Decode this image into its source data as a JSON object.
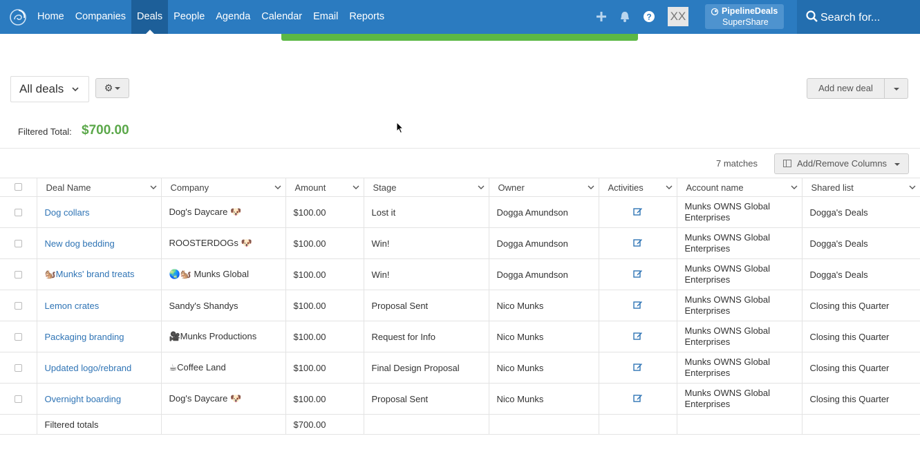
{
  "nav": {
    "items": [
      "Home",
      "Companies",
      "Deals",
      "People",
      "Agenda",
      "Calendar",
      "Email",
      "Reports"
    ],
    "active": "Deals",
    "avatar": "XX",
    "superbtn_line1": "PipelineDeals",
    "superbtn_line2": "SuperShare",
    "search_placeholder": "Search for..."
  },
  "toolbar": {
    "view_label": "All deals",
    "add_new_label": "Add new deal"
  },
  "summary": {
    "filtered_total_label": "Filtered Total:",
    "filtered_total_value": "$700.00",
    "matches": "7 matches",
    "columns_button": "Add/Remove Columns"
  },
  "table": {
    "columns": [
      "Deal Name",
      "Company",
      "Amount",
      "Stage",
      "Owner",
      "Activities",
      "Account name",
      "Shared list"
    ],
    "rows": [
      {
        "deal": "Dog collars",
        "company": "Dog's Daycare 🐶",
        "amount": "$100.00",
        "stage": "Lost it",
        "owner": "Dogga Amundson",
        "account_1": "Munks OWNS Global",
        "account_2": "Enterprises",
        "shared": "Dogga's Deals"
      },
      {
        "deal": "New dog bedding",
        "company": "ROOSTERDOGs 🐶",
        "amount": "$100.00",
        "stage": "Win!",
        "owner": "Dogga Amundson",
        "account_1": "Munks OWNS Global",
        "account_2": "Enterprises",
        "shared": "Dogga's Deals"
      },
      {
        "deal": "🐿️Munks' brand treats",
        "company": "🌏🐿️ Munks Global",
        "amount": "$100.00",
        "stage": "Win!",
        "owner": "Dogga Amundson",
        "account_1": "Munks OWNS Global",
        "account_2": "Enterprises",
        "shared": "Dogga's Deals"
      },
      {
        "deal": "Lemon crates",
        "company": "Sandy's Shandys",
        "amount": "$100.00",
        "stage": "Proposal Sent",
        "owner": "Nico Munks",
        "account_1": "Munks OWNS Global",
        "account_2": "Enterprises",
        "shared": "Closing this Quarter"
      },
      {
        "deal": "Packaging branding",
        "company": "🎥Munks Productions",
        "amount": "$100.00",
        "stage": "Request for Info",
        "owner": "Nico Munks",
        "account_1": "Munks OWNS Global",
        "account_2": "Enterprises",
        "shared": "Closing this Quarter"
      },
      {
        "deal": "Updated logo/rebrand",
        "company": "☕Coffee Land",
        "amount": "$100.00",
        "stage": "Final Design Proposal",
        "owner": "Nico Munks",
        "account_1": "Munks OWNS Global",
        "account_2": "Enterprises",
        "shared": "Closing this Quarter"
      },
      {
        "deal": "Overnight boarding",
        "company": "Dog's Daycare 🐶",
        "amount": "$100.00",
        "stage": "Proposal Sent",
        "owner": "Nico Munks",
        "account_1": "Munks OWNS Global",
        "account_2": "Enterprises",
        "shared": "Closing this Quarter"
      }
    ],
    "totals_label": "Filtered totals",
    "totals_amount": "$700.00"
  },
  "colors": {
    "nav_bg": "#2b7bc0",
    "nav_active": "#1d5f99",
    "link": "#2f74b5",
    "total_green": "#5ba84a",
    "banner_green": "#5cb845"
  },
  "icons": [
    "logo-swirl-icon",
    "plus-icon",
    "bell-icon",
    "help-icon",
    "share-icon",
    "search-icon",
    "gear-icon",
    "columns-icon",
    "edit-icon",
    "chevron-down-icon"
  ]
}
